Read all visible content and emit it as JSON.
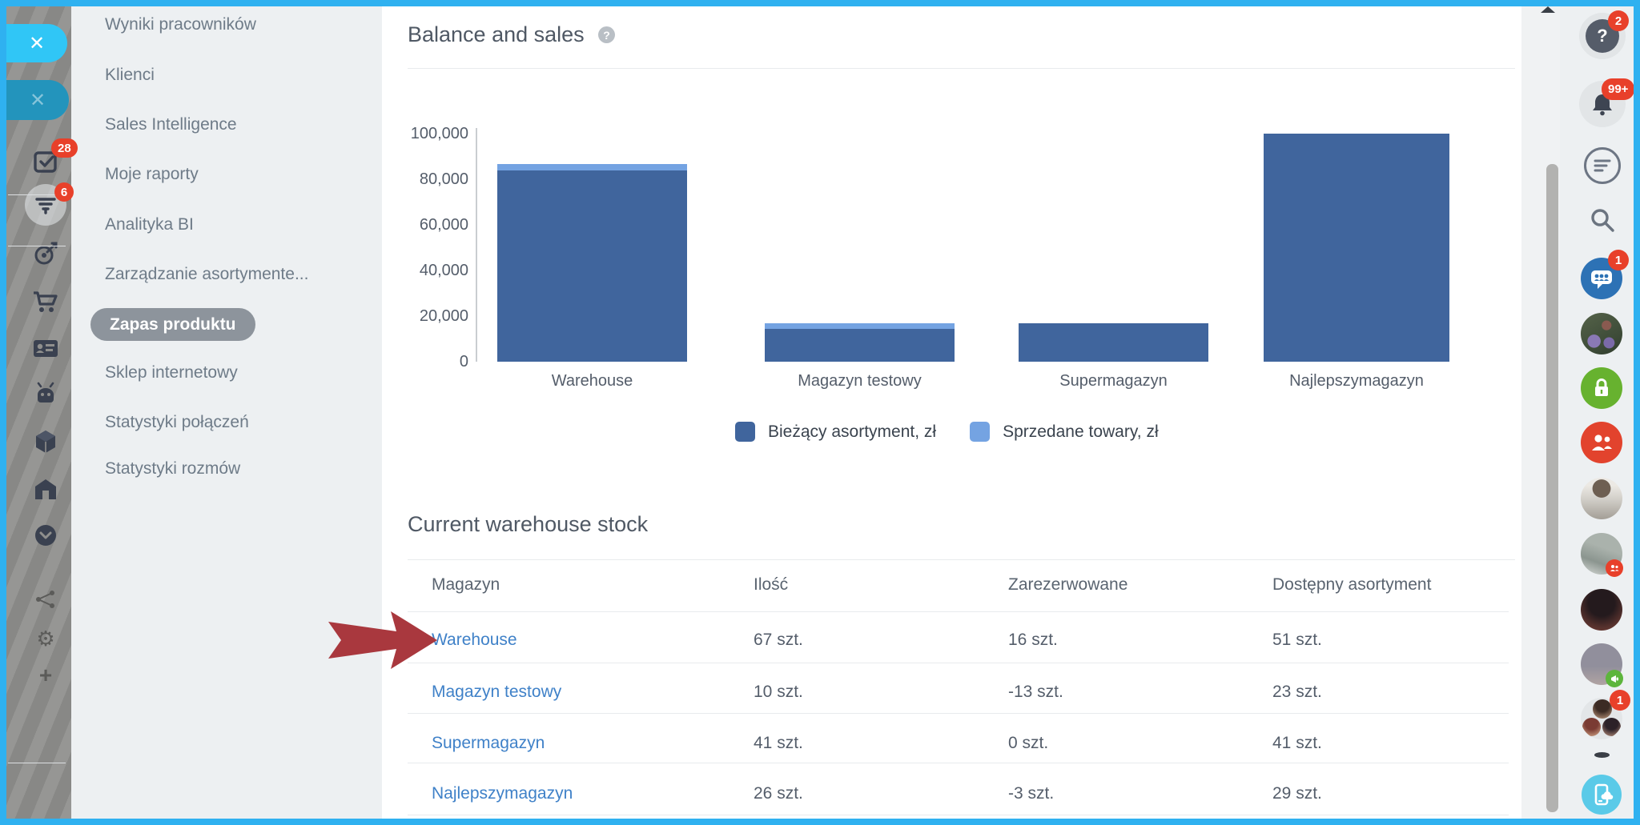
{
  "accent": {
    "frame_blue": "#2fb1f0",
    "badge_red": "#e8402a",
    "link_blue": "#3f81c8"
  },
  "left_rail": {
    "close_top_label": "✕",
    "close_second_label": "✕",
    "tasks_badge": "28",
    "crm_badge": "6"
  },
  "sidebar": {
    "items": [
      {
        "label": "Wyniki pracowników"
      },
      {
        "label": "Klienci"
      },
      {
        "label": "Sales Intelligence"
      },
      {
        "label": "Moje raporty"
      },
      {
        "label": "Analityka BI"
      },
      {
        "label": "Zarządzanie asortymente..."
      },
      {
        "label": "Zapas produktu",
        "selected": true
      },
      {
        "label": "Sklep internetowy"
      },
      {
        "label": "Statystyki połączeń"
      },
      {
        "label": "Statystyki rozmów"
      }
    ]
  },
  "main": {
    "balance_title": "Balance and sales",
    "help_glyph": "?",
    "stock_title": "Current warehouse stock",
    "table": {
      "columns": [
        "Magazyn",
        "Ilość",
        "Zarezerwowane",
        "Dostępny asortyment"
      ],
      "rows": [
        {
          "name": "Warehouse",
          "qty": "67 szt.",
          "reserved": "16 szt.",
          "available": "51 szt."
        },
        {
          "name": "Magazyn testowy",
          "qty": "10 szt.",
          "reserved": "-13 szt.",
          "available": "23 szt."
        },
        {
          "name": "Supermagazyn",
          "qty": "41 szt.",
          "reserved": "0 szt.",
          "available": "41 szt."
        },
        {
          "name": "Najlepszymagazyn",
          "qty": "26 szt.",
          "reserved": "-3 szt.",
          "available": "29 szt."
        }
      ]
    }
  },
  "chart_data": {
    "type": "bar",
    "stacked": true,
    "title": "Balance and sales",
    "categories": [
      "Warehouse",
      "Magazyn testowy",
      "Supermagazyn",
      "Najlepszymagazyn"
    ],
    "series": [
      {
        "name": "Bieżący asortyment, zł",
        "color": "#40659d",
        "values": [
          84000,
          14500,
          17000,
          100000
        ]
      },
      {
        "name": "Sprzedane towary, zł",
        "color": "#74a3e2",
        "values": [
          2800,
          2400,
          0,
          0
        ]
      }
    ],
    "ylim": [
      0,
      100000
    ],
    "yticks": [
      "100,000",
      "80,000",
      "60,000",
      "40,000",
      "20,000",
      "0"
    ],
    "grid": false,
    "legend_position": "bottom"
  },
  "right_toolbar": {
    "help_badge": "2",
    "notifications_badge": "99+",
    "messenger_badge": "1",
    "group_chat_badge": "1"
  }
}
